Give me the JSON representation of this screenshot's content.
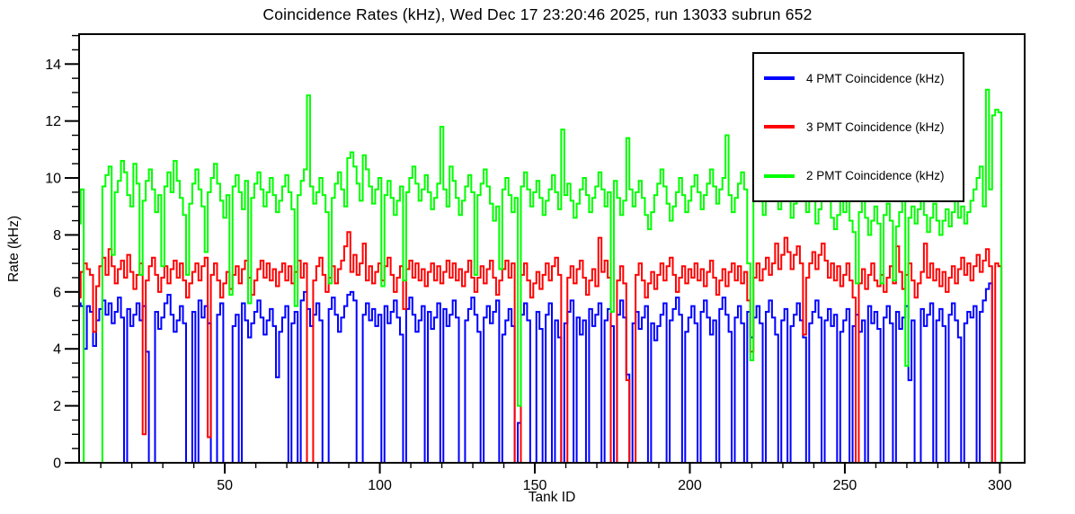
{
  "title": "Coincidence Rates (kHz), Wed Dec 17 23:20:46 2025, run 13033 subrun 652",
  "chart_data": {
    "type": "line",
    "subtype": "step-histogram",
    "title": "Coincidence Rates (kHz), Wed Dec 17 23:20:46 2025, run 13033 subrun 652",
    "xlabel": "Tank ID",
    "ylabel": "Rate (kHz)",
    "grid": false,
    "legend_position": "top-right",
    "x_first_tank": 1,
    "x_range": [
      3,
      308
    ],
    "y_range": [
      0,
      15.05
    ],
    "x_major_ticks": [
      50,
      100,
      150,
      200,
      250,
      300
    ],
    "x_minor_step": 10,
    "y_major_ticks": [
      0,
      2,
      4,
      6,
      8,
      10,
      12,
      14
    ],
    "y_minor_step": 0.5,
    "frame_color": "#000000",
    "background_color": "#ffffff",
    "series": [
      {
        "name": "4 PMT Coincidence (kHz)",
        "color": "#0000ff",
        "values": [
          5.6,
          5.6,
          5.6,
          5.5,
          4.0,
          5.5,
          5.3,
          4.1,
          5.0,
          5.4,
          5.7,
          5.2,
          5.6,
          4.9,
          5.3,
          5.8,
          5.1,
          0,
          5.4,
          4.8,
          5.2,
          5.6,
          5.0,
          5.5,
          3.9,
          0,
          0,
          5.3,
          4.7,
          5.1,
          5.6,
          5.9,
          5.2,
          4.6,
          5.0,
          5.5,
          4.9,
          0,
          0,
          5.3,
          0,
          5.7,
          5.1,
          5.5,
          4.9,
          0,
          0,
          5.2,
          5.6,
          0,
          0,
          0,
          4.8,
          5.2,
          0,
          5.6,
          5.0,
          4.4,
          4.9,
          5.3,
          5.7,
          5.1,
          4.5,
          5.0,
          5.4,
          4.8,
          3.0,
          4.6,
          5.1,
          5.5,
          0,
          4.9,
          5.3,
          0,
          5.7,
          6.0,
          5.4,
          4.8,
          5.2,
          5.6,
          5.0,
          0,
          0,
          5.4,
          5.8,
          5.2,
          4.6,
          5.1,
          5.5,
          5.9,
          6.0,
          5.7,
          0,
          0,
          5.2,
          5.6,
          5.0,
          5.4,
          4.8,
          5.2,
          0,
          5.5,
          4.9,
          5.3,
          5.7,
          5.1,
          4.5,
          0,
          5.4,
          5.8,
          5.2,
          4.6,
          5.0,
          5.5,
          0,
          5.3,
          4.7,
          5.1,
          5.6,
          0,
          5.4,
          4.8,
          5.2,
          5.7,
          5.1,
          0,
          0,
          5.0,
          5.4,
          5.8,
          5.2,
          4.6,
          0,
          5.1,
          5.5,
          4.9,
          5.3,
          5.7,
          0,
          4.5,
          5.0,
          5.4,
          4.8,
          0,
          1.4,
          5.2,
          5.6,
          5.0,
          0,
          0,
          5.3,
          4.7,
          0,
          5.2,
          5.6,
          0,
          5.0,
          4.4,
          0,
          4.9,
          5.3,
          5.7,
          0,
          5.1,
          4.5,
          5.0,
          0,
          5.4,
          4.8,
          5.2,
          5.6,
          0,
          5.0,
          5.4,
          4.8,
          0,
          5.2,
          5.7,
          5.1,
          3.1,
          0,
          4.9,
          5.3,
          4.7,
          5.1,
          5.5,
          0,
          4.9,
          4.3,
          4.8,
          5.2,
          5.6,
          0,
          5.0,
          5.4,
          5.8,
          5.2,
          0,
          4.6,
          5.1,
          5.5,
          4.9,
          0,
          5.3,
          5.7,
          5.1,
          4.5,
          5.0,
          0,
          5.4,
          5.8,
          5.2,
          4.6,
          0,
          5.1,
          5.5,
          4.9,
          0,
          5.3,
          4.4,
          5.1,
          5.5,
          4.9,
          0,
          5.3,
          5.7,
          5.1,
          4.5,
          0,
          5.0,
          5.4,
          0,
          4.8,
          5.2,
          5.6,
          5.0,
          4.4,
          0,
          4.9,
          5.3,
          5.7,
          5.1,
          0,
          5.0,
          5.4,
          4.8,
          5.2,
          0,
          4.6,
          5.0,
          5.4,
          0,
          4.8,
          5.2,
          4.6,
          5.0,
          0,
          5.5,
          4.9,
          5.3,
          4.7,
          0,
          5.1,
          5.5,
          4.9,
          0,
          5.3,
          4.7,
          5.1,
          5.5,
          2.9,
          5.0,
          0,
          0,
          5.4,
          4.8,
          5.2,
          5.6,
          0,
          5.0,
          5.4,
          4.8,
          0,
          5.2,
          5.6,
          5.0,
          4.4,
          0,
          4.9,
          5.3,
          5.1,
          5.5,
          0,
          5.3,
          5.7,
          6.1,
          6.3,
          0,
          0,
          0,
          0,
          0,
          0,
          0,
          0
        ]
      },
      {
        "name": "3 PMT Coincidence (kHz)",
        "color": "#ff0000",
        "values": [
          5.8,
          6.7,
          5.8,
          6.7,
          7.0,
          6.8,
          6.6,
          4.6,
          6.2,
          6.9,
          7.2,
          6.6,
          7.5,
          6.9,
          6.3,
          6.8,
          7.1,
          6.5,
          7.3,
          6.7,
          6.1,
          6.6,
          7.0,
          1.0,
          6.4,
          6.9,
          7.2,
          6.6,
          6.0,
          6.5,
          6.9,
          6.3,
          6.8,
          7.1,
          6.5,
          7.0,
          6.4,
          5.8,
          6.3,
          6.7,
          7.0,
          6.4,
          6.9,
          7.2,
          0.9,
          6.6,
          7.0,
          6.4,
          5.8,
          6.3,
          6.7,
          6.1,
          6.6,
          6.9,
          6.3,
          6.8,
          7.1,
          6.5,
          5.9,
          6.4,
          6.8,
          7.1,
          6.5,
          7.0,
          6.4,
          6.8,
          6.2,
          6.7,
          7.0,
          6.4,
          6.9,
          6.3,
          6.7,
          7.1,
          6.5,
          7.0,
          0,
          0,
          6.4,
          6.9,
          7.2,
          6.6,
          6.0,
          6.5,
          6.9,
          6.3,
          6.8,
          7.1,
          7.6,
          8.1,
          6.7,
          7.3,
          6.6,
          7.0,
          7.7,
          6.4,
          6.9,
          6.3,
          6.7,
          7.0,
          6.4,
          6.9,
          7.2,
          6.6,
          6.0,
          6.5,
          6.9,
          5.4,
          6.8,
          7.1,
          6.5,
          7.0,
          6.4,
          6.8,
          6.2,
          6.7,
          7.0,
          6.4,
          6.9,
          6.3,
          6.7,
          7.1,
          6.5,
          7.0,
          6.4,
          6.8,
          6.2,
          6.7,
          7.1,
          6.5,
          6.0,
          6.5,
          6.9,
          6.3,
          6.8,
          7.1,
          6.5,
          5.9,
          6.4,
          6.8,
          7.1,
          6.5,
          7.0,
          0,
          0,
          6.6,
          7.0,
          6.4,
          5.8,
          6.3,
          6.7,
          6.1,
          6.6,
          7.0,
          6.4,
          6.9,
          7.2,
          6.6,
          0,
          0,
          6.5,
          6.9,
          6.3,
          6.8,
          7.1,
          6.5,
          5.9,
          6.4,
          6.8,
          6.2,
          7.9,
          6.7,
          7.1,
          6.5,
          0,
          0,
          6.4,
          6.9,
          6.3,
          2.9,
          0,
          0,
          6.6,
          7.0,
          6.4,
          5.8,
          6.3,
          6.7,
          6.1,
          6.6,
          7.0,
          6.4,
          6.9,
          7.2,
          6.6,
          6.0,
          6.5,
          6.9,
          6.3,
          6.8,
          6.5,
          7.0,
          6.4,
          6.8,
          6.2,
          6.7,
          7.1,
          6.5,
          5.9,
          6.4,
          6.8,
          6.2,
          6.7,
          7.0,
          6.4,
          6.9,
          6.3,
          6.7,
          5.7,
          3.9,
          6.5,
          7.0,
          6.4,
          6.8,
          7.2,
          6.6,
          7.0,
          7.7,
          6.8,
          7.3,
          7.9,
          7.4,
          6.8,
          7.3,
          7.6,
          7.0,
          4.5,
          6.5,
          7.0,
          7.4,
          6.8,
          7.3,
          7.7,
          7.1,
          6.5,
          7.0,
          6.4,
          6.9,
          6.2,
          6.6,
          7.0,
          6.4,
          5.8,
          0,
          6.3,
          6.8,
          6.1,
          6.6,
          7.0,
          6.4,
          6.2,
          6.6,
          6.0,
          6.5,
          6.9,
          6.3,
          7.6,
          6.7,
          6.1,
          6.6,
          7.0,
          6.4,
          5.8,
          6.3,
          6.7,
          7.7,
          6.5,
          7.0,
          6.4,
          6.8,
          6.2,
          6.7,
          6.0,
          6.5,
          6.9,
          6.3,
          6.8,
          7.2,
          6.6,
          7.0,
          6.4,
          6.9,
          7.3,
          6.7,
          7.1,
          7.5,
          6.9,
          0,
          7.0,
          6.9,
          0,
          0,
          0,
          0,
          0
        ]
      },
      {
        "name": "2 PMT Coincidence (kHz)",
        "color": "#00ff00",
        "values": [
          8.4,
          9.6,
          8.4,
          9.6,
          0,
          0,
          0,
          0,
          0,
          0,
          9.7,
          10.1,
          10.4,
          7.3,
          9.5,
          9.9,
          10.6,
          10.2,
          9.4,
          9.0,
          10.5,
          9.8,
          6.6,
          9.2,
          9.9,
          10.3,
          9.6,
          8.8,
          9.4,
          6.9,
          9.7,
          10.2,
          9.5,
          10.6,
          9.9,
          9.3,
          8.7,
          6.6,
          9.1,
          9.8,
          10.3,
          9.6,
          9.0,
          7.4,
          9.5,
          10.0,
          10.5,
          9.8,
          9.2,
          8.6,
          9.4,
          5.9,
          9.7,
          10.1,
          9.5,
          8.9,
          9.9,
          5.6,
          9.3,
          9.8,
          10.2,
          9.6,
          9.0,
          9.5,
          10.0,
          9.4,
          8.8,
          9.2,
          9.7,
          10.1,
          9.5,
          8.9,
          5.5,
          9.4,
          9.9,
          10.3,
          12.9,
          9.7,
          9.1,
          9.5,
          10.0,
          9.4,
          8.8,
          6.3,
          9.3,
          9.8,
          10.2,
          9.6,
          9.0,
          10.7,
          10.9,
          10.4,
          9.8,
          9.2,
          10.8,
          10.3,
          9.7,
          9.1,
          9.6,
          10.0,
          6.2,
          9.4,
          9.9,
          9.3,
          8.7,
          9.2,
          9.7,
          6.4,
          9.5,
          10.0,
          10.4,
          9.8,
          9.2,
          9.6,
          10.1,
          9.5,
          8.9,
          9.3,
          9.8,
          11.8,
          9.6,
          9.0,
          10.4,
          9.9,
          9.3,
          8.7,
          9.2,
          9.7,
          10.1,
          9.5,
          6.6,
          9.4,
          9.8,
          10.3,
          9.7,
          9.1,
          8.5,
          9.0,
          6.8,
          9.6,
          10.0,
          9.4,
          8.8,
          9.3,
          2.0,
          9.7,
          10.2,
          9.6,
          9.0,
          9.5,
          9.9,
          9.3,
          8.7,
          9.2,
          9.6,
          10.1,
          9.5,
          8.9,
          11.7,
          9.4,
          9.8,
          9.2,
          8.6,
          9.1,
          9.6,
          10.0,
          9.4,
          8.8,
          9.3,
          9.7,
          10.2,
          9.6,
          9.0,
          9.5,
          5.3,
          9.9,
          9.3,
          8.7,
          9.2,
          11.4,
          9.6,
          9.0,
          9.5,
          9.9,
          9.3,
          8.7,
          8.2,
          8.8,
          9.4,
          9.8,
          10.3,
          9.7,
          9.1,
          8.5,
          9.0,
          9.5,
          10.0,
          9.4,
          8.8,
          9.2,
          9.7,
          10.1,
          9.5,
          8.9,
          9.4,
          9.8,
          10.3,
          9.7,
          9.1,
          9.6,
          10.0,
          11.5,
          9.4,
          8.8,
          9.3,
          9.8,
          10.2,
          9.6,
          7.0,
          3.6,
          9.5,
          9.9,
          9.3,
          8.7,
          9.2,
          9.6,
          10.1,
          9.5,
          8.9,
          9.4,
          9.8,
          9.2,
          8.6,
          9.1,
          9.6,
          10.0,
          9.4,
          8.8,
          9.3,
          9.7,
          8.4,
          8.9,
          9.4,
          9.8,
          9.2,
          8.6,
          8.2,
          8.7,
          9.2,
          8.8,
          9.3,
          8.5,
          8.1,
          6.3,
          8.8,
          9.2,
          8.6,
          8.0,
          8.5,
          9.0,
          8.4,
          6.3,
          8.7,
          9.1,
          8.5,
          6.4,
          8.3,
          8.8,
          9.2,
          3.4,
          8.6,
          9.0,
          8.4,
          8.9,
          9.3,
          8.7,
          8.1,
          8.6,
          9.1,
          8.5,
          8.0,
          8.5,
          8.9,
          8.3,
          8.8,
          9.2,
          8.6,
          9.0,
          8.4,
          8.8,
          9.2,
          9.6,
          10.0,
          10.4,
          9.0,
          13.1,
          9.6,
          12.2,
          12.4,
          12.3,
          0,
          0,
          0,
          0,
          0
        ]
      }
    ]
  }
}
